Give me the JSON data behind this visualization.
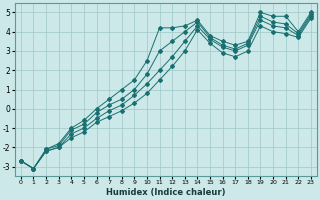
{
  "xlabel": "Humidex (Indice chaleur)",
  "xlim": [
    -0.5,
    23.5
  ],
  "ylim": [
    -3.5,
    5.5
  ],
  "xticks": [
    0,
    1,
    2,
    3,
    4,
    5,
    6,
    7,
    8,
    9,
    10,
    11,
    12,
    13,
    14,
    15,
    16,
    17,
    18,
    19,
    20,
    21,
    22,
    23
  ],
  "yticks": [
    -3,
    -2,
    -1,
    0,
    1,
    2,
    3,
    4,
    5
  ],
  "bg_color": "#cce8e8",
  "line_color": "#1a7070",
  "lines": [
    {
      "x": [
        0,
        1,
        2,
        3,
        4,
        5,
        6,
        7,
        8,
        9,
        10,
        11,
        12,
        13,
        14,
        15,
        16,
        17,
        18,
        19,
        20,
        21,
        22,
        23
      ],
      "y": [
        -2.7,
        -3.1,
        -2.1,
        -1.8,
        -1.0,
        -0.6,
        0.0,
        0.5,
        1.0,
        1.5,
        2.5,
        4.2,
        4.2,
        4.3,
        4.6,
        3.8,
        3.5,
        3.3,
        3.5,
        5.0,
        4.8,
        4.8,
        4.0,
        5.0
      ]
    },
    {
      "x": [
        0,
        1,
        2,
        3,
        4,
        5,
        6,
        7,
        8,
        9,
        10,
        11,
        12,
        13,
        14,
        15,
        16,
        17,
        18,
        19,
        20,
        21,
        22,
        23
      ],
      "y": [
        -2.7,
        -3.1,
        -2.1,
        -1.9,
        -1.1,
        -0.8,
        -0.2,
        0.2,
        0.5,
        1.0,
        1.8,
        3.0,
        3.5,
        4.0,
        4.5,
        3.7,
        3.3,
        3.1,
        3.4,
        4.8,
        4.5,
        4.4,
        3.9,
        4.9
      ]
    },
    {
      "x": [
        0,
        1,
        2,
        3,
        4,
        5,
        6,
        7,
        8,
        9,
        10,
        11,
        12,
        13,
        14,
        15,
        16,
        17,
        18,
        19,
        20,
        21,
        22,
        23
      ],
      "y": [
        -2.7,
        -3.1,
        -2.2,
        -2.0,
        -1.3,
        -1.0,
        -0.5,
        -0.1,
        0.2,
        0.7,
        1.3,
        2.0,
        2.7,
        3.5,
        4.3,
        3.6,
        3.2,
        3.0,
        3.3,
        4.6,
        4.3,
        4.2,
        3.8,
        4.8
      ]
    },
    {
      "x": [
        0,
        1,
        2,
        3,
        4,
        5,
        6,
        7,
        8,
        9,
        10,
        11,
        12,
        13,
        14,
        15,
        16,
        17,
        18,
        19,
        20,
        21,
        22,
        23
      ],
      "y": [
        -2.7,
        -3.1,
        -2.2,
        -2.0,
        -1.5,
        -1.2,
        -0.7,
        -0.4,
        -0.1,
        0.3,
        0.8,
        1.5,
        2.2,
        3.0,
        4.1,
        3.4,
        2.9,
        2.7,
        3.0,
        4.3,
        4.0,
        3.9,
        3.7,
        4.7
      ]
    }
  ]
}
